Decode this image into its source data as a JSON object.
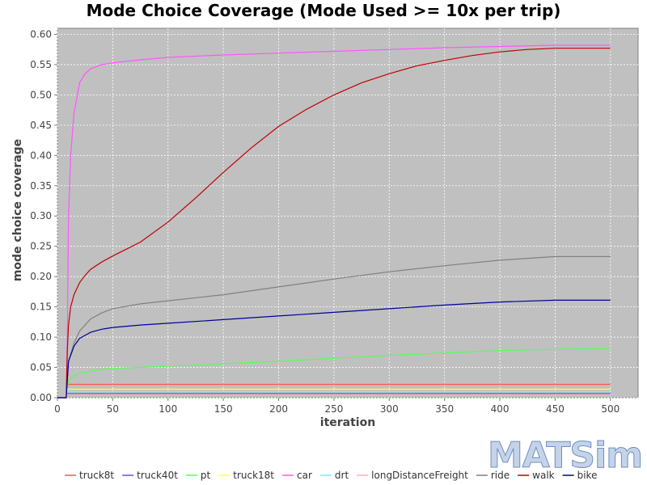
{
  "chart_data": {
    "type": "line",
    "title": "Mode Choice Coverage (Mode Used >= 10x per trip)",
    "xlabel": "iteration",
    "ylabel": "mode choice coverage",
    "xlim": [
      0,
      525
    ],
    "ylim": [
      0,
      0.61
    ],
    "xticks": [
      0,
      50,
      100,
      150,
      200,
      250,
      300,
      350,
      400,
      450,
      500
    ],
    "yticks": [
      0,
      0.05,
      0.1,
      0.15,
      0.2,
      0.25,
      0.3,
      0.35,
      0.4,
      0.45,
      0.5,
      0.55,
      0.6
    ],
    "grid": true,
    "legend_position": "bottom",
    "plot_background": "#c0c0c0",
    "series": [
      {
        "name": "truck8t",
        "color": "#ff5555",
        "points": [
          [
            0,
            0
          ],
          [
            8,
            0
          ],
          [
            9,
            0.022
          ],
          [
            500,
            0.022
          ]
        ]
      },
      {
        "name": "truck40t",
        "color": "#5555ff",
        "points": [
          [
            0,
            0
          ],
          [
            8,
            0
          ],
          [
            9,
            0.007
          ],
          [
            500,
            0.007
          ]
        ]
      },
      {
        "name": "pt",
        "color": "#55ff55",
        "points": [
          [
            0,
            0
          ],
          [
            8,
            0
          ],
          [
            10,
            0.03
          ],
          [
            15,
            0.036
          ],
          [
            20,
            0.04
          ],
          [
            30,
            0.044
          ],
          [
            40,
            0.047
          ],
          [
            50,
            0.048
          ],
          [
            75,
            0.05
          ],
          [
            100,
            0.052
          ],
          [
            150,
            0.056
          ],
          [
            200,
            0.06
          ],
          [
            250,
            0.065
          ],
          [
            300,
            0.07
          ],
          [
            350,
            0.074
          ],
          [
            400,
            0.078
          ],
          [
            450,
            0.08
          ],
          [
            500,
            0.081
          ]
        ]
      },
      {
        "name": "truck18t",
        "color": "#ffff55",
        "points": [
          [
            0,
            0
          ],
          [
            8,
            0
          ],
          [
            9,
            0.014
          ],
          [
            500,
            0.014
          ]
        ]
      },
      {
        "name": "car",
        "color": "#ff55ff",
        "points": [
          [
            0,
            0
          ],
          [
            8,
            0
          ],
          [
            9,
            0.1
          ],
          [
            10,
            0.3
          ],
          [
            12,
            0.4
          ],
          [
            15,
            0.47
          ],
          [
            20,
            0.52
          ],
          [
            25,
            0.535
          ],
          [
            30,
            0.543
          ],
          [
            40,
            0.55
          ],
          [
            50,
            0.553
          ],
          [
            75,
            0.558
          ],
          [
            100,
            0.562
          ],
          [
            150,
            0.566
          ],
          [
            200,
            0.569
          ],
          [
            250,
            0.572
          ],
          [
            300,
            0.575
          ],
          [
            350,
            0.578
          ],
          [
            400,
            0.58
          ],
          [
            450,
            0.582
          ],
          [
            500,
            0.582
          ]
        ]
      },
      {
        "name": "drt",
        "color": "#55ffff",
        "points": [
          [
            0,
            0
          ],
          [
            8,
            0
          ],
          [
            9,
            0.01
          ],
          [
            500,
            0.01
          ]
        ]
      },
      {
        "name": "longDistanceFreight",
        "color": "#ffafaf",
        "points": [
          [
            0,
            0
          ],
          [
            8,
            0
          ],
          [
            9,
            0.005
          ],
          [
            500,
            0.005
          ]
        ]
      },
      {
        "name": "ride",
        "color": "#808080",
        "points": [
          [
            0,
            0
          ],
          [
            8,
            0
          ],
          [
            10,
            0.06
          ],
          [
            15,
            0.09
          ],
          [
            20,
            0.11
          ],
          [
            30,
            0.13
          ],
          [
            40,
            0.14
          ],
          [
            50,
            0.147
          ],
          [
            75,
            0.155
          ],
          [
            100,
            0.16
          ],
          [
            150,
            0.17
          ],
          [
            200,
            0.183
          ],
          [
            250,
            0.196
          ],
          [
            300,
            0.208
          ],
          [
            350,
            0.218
          ],
          [
            400,
            0.227
          ],
          [
            450,
            0.233
          ],
          [
            500,
            0.233
          ]
        ]
      },
      {
        "name": "walk",
        "color": "#c00000",
        "points": [
          [
            0,
            0
          ],
          [
            8,
            0
          ],
          [
            9,
            0.08
          ],
          [
            10,
            0.12
          ],
          [
            12,
            0.15
          ],
          [
            15,
            0.17
          ],
          [
            20,
            0.19
          ],
          [
            25,
            0.202
          ],
          [
            30,
            0.212
          ],
          [
            40,
            0.224
          ],
          [
            50,
            0.234
          ],
          [
            75,
            0.257
          ],
          [
            100,
            0.29
          ],
          [
            125,
            0.33
          ],
          [
            150,
            0.372
          ],
          [
            175,
            0.412
          ],
          [
            200,
            0.448
          ],
          [
            225,
            0.476
          ],
          [
            250,
            0.5
          ],
          [
            275,
            0.52
          ],
          [
            300,
            0.535
          ],
          [
            325,
            0.548
          ],
          [
            350,
            0.557
          ],
          [
            375,
            0.565
          ],
          [
            400,
            0.571
          ],
          [
            425,
            0.575
          ],
          [
            450,
            0.577
          ],
          [
            500,
            0.577
          ]
        ]
      },
      {
        "name": "bike",
        "color": "#000099",
        "points": [
          [
            0,
            0
          ],
          [
            8,
            0
          ],
          [
            10,
            0.06
          ],
          [
            15,
            0.085
          ],
          [
            20,
            0.098
          ],
          [
            30,
            0.108
          ],
          [
            40,
            0.113
          ],
          [
            50,
            0.116
          ],
          [
            75,
            0.12
          ],
          [
            100,
            0.123
          ],
          [
            150,
            0.129
          ],
          [
            200,
            0.135
          ],
          [
            250,
            0.141
          ],
          [
            300,
            0.147
          ],
          [
            350,
            0.153
          ],
          [
            400,
            0.158
          ],
          [
            450,
            0.161
          ],
          [
            500,
            0.161
          ]
        ]
      }
    ]
  },
  "logo": {
    "text": "MATSim"
  }
}
